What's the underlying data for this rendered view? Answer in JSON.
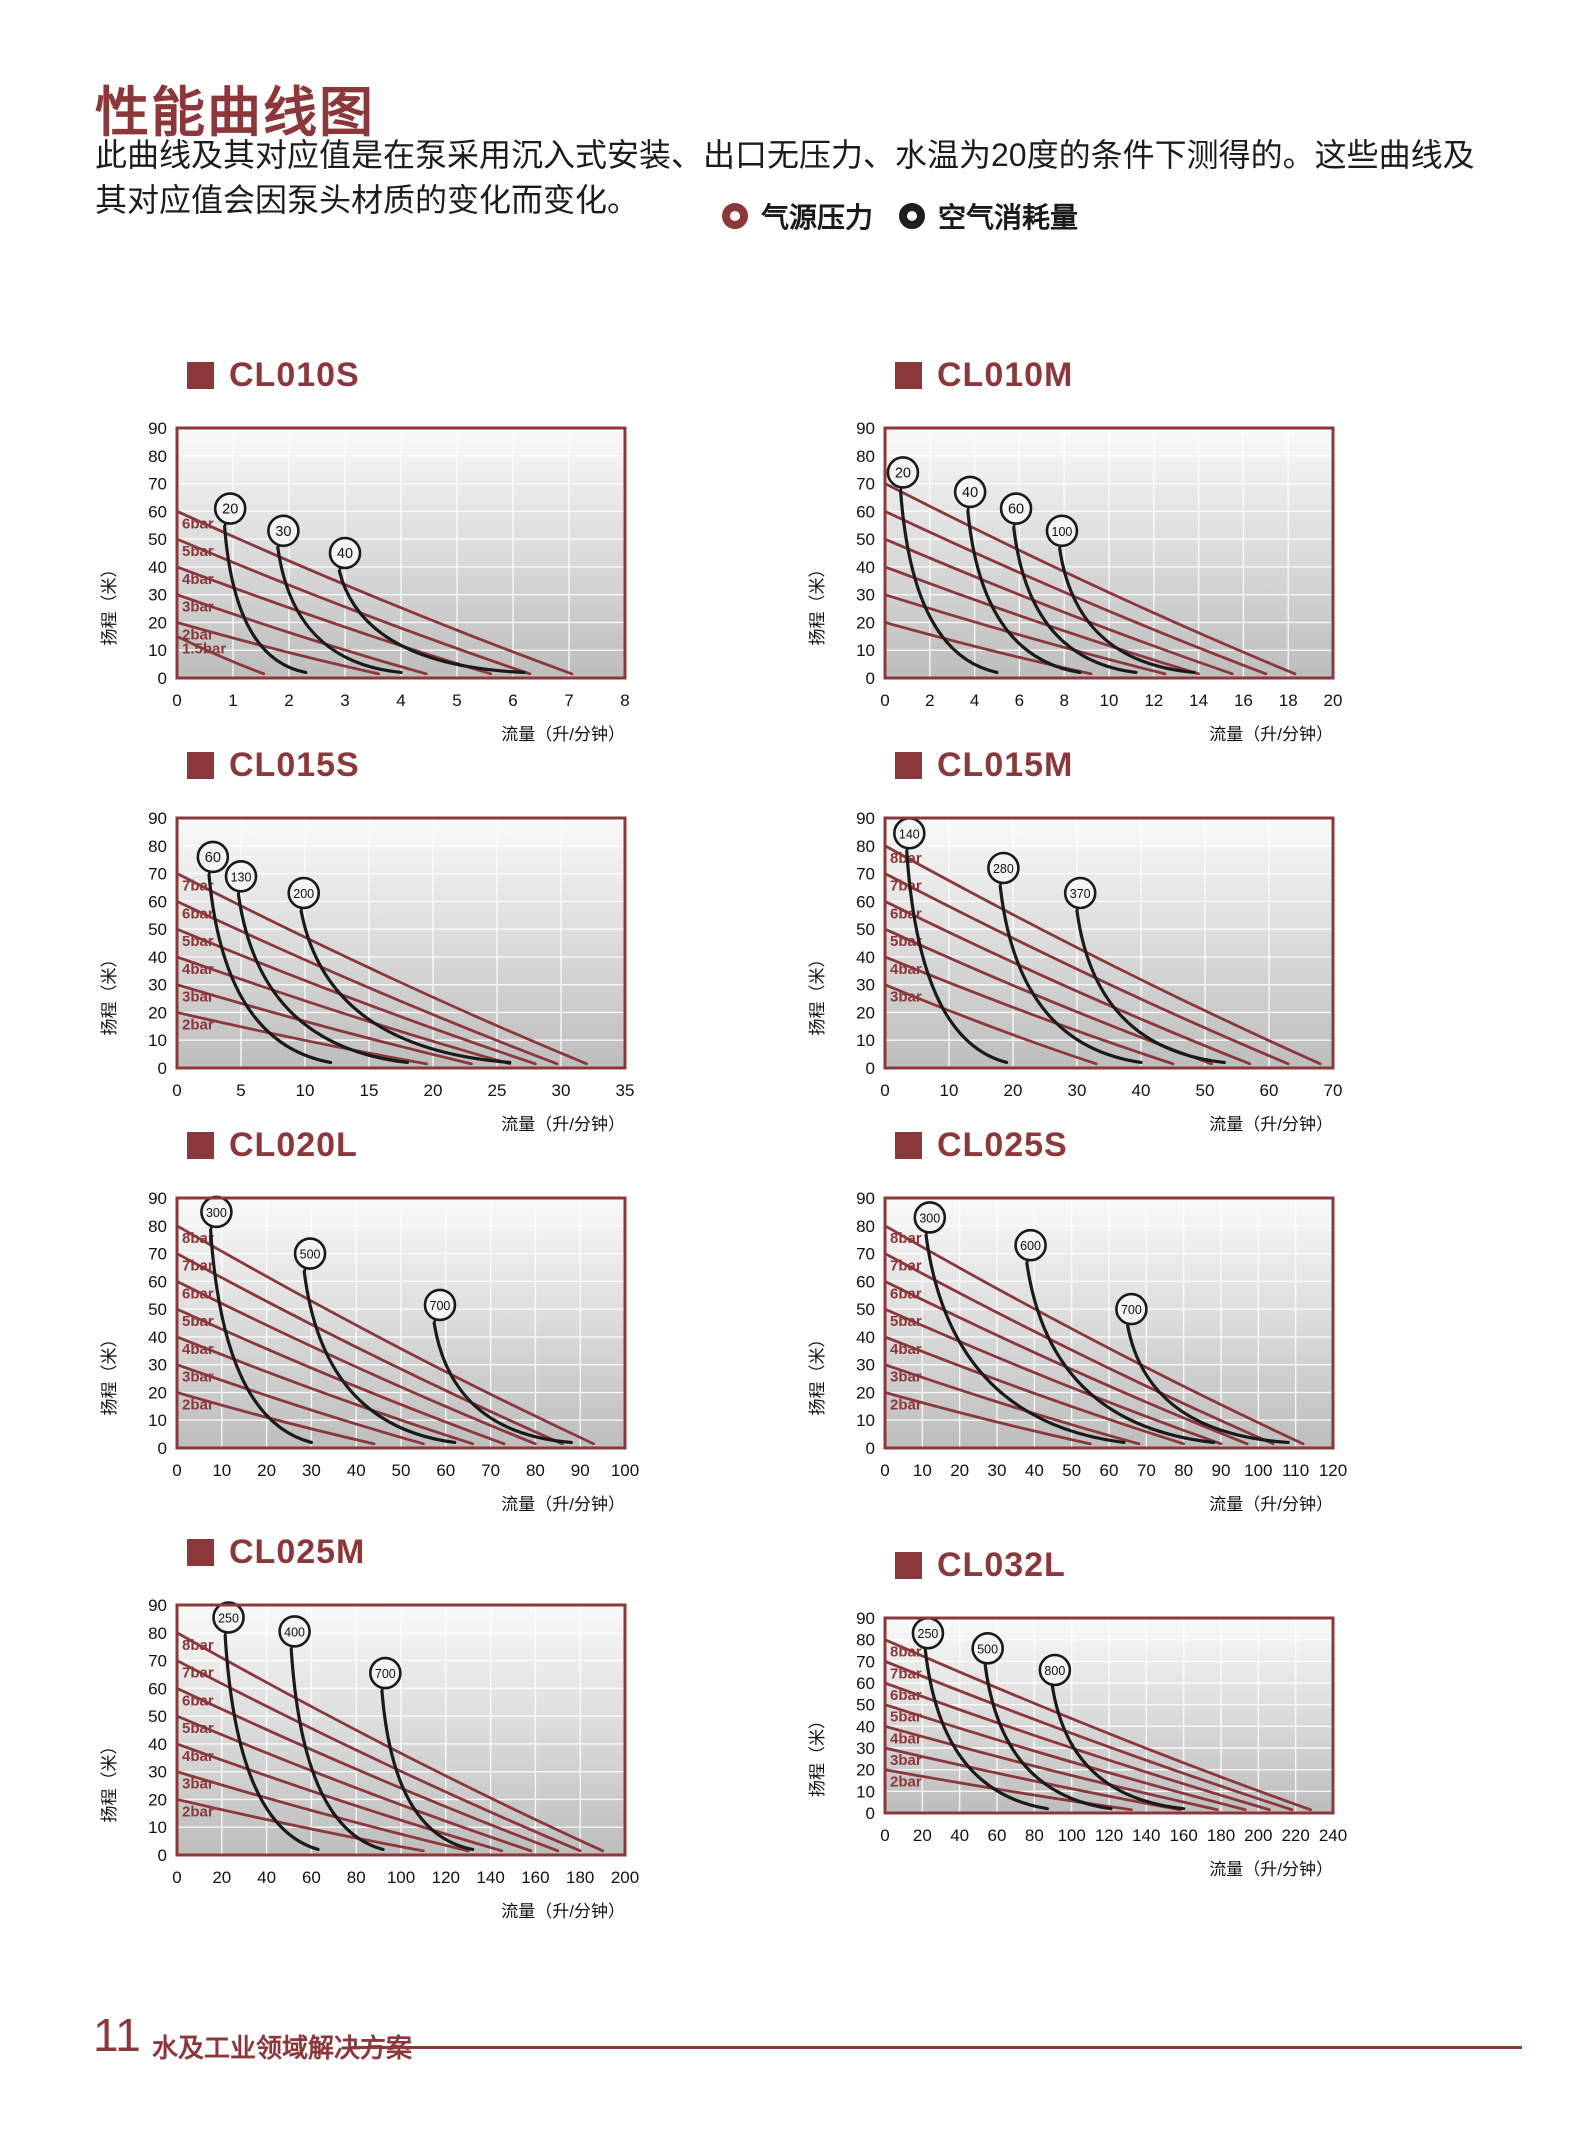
{
  "page": {
    "title": "性能曲线图",
    "description": "此曲线及其对应值是在泵采用沉入式安装、出口无压力、水温为20度的条件下测得的。这些曲线及其对应值会因泵头材质的变化而变化。",
    "footer": {
      "page_number": "11",
      "text": "水及工业领域解决方案"
    }
  },
  "legend": [
    {
      "label": "气源压力",
      "color": "#8c383a"
    },
    {
      "label": "空气消耗量",
      "color": "#1d1d1d"
    }
  ],
  "colors": {
    "accent": "#8c383a",
    "curve_black": "#1a1a1a",
    "grid": "#ffffff",
    "plot_bg_top": "#f9f9f9",
    "plot_bg_bottom": "#bdbdbd",
    "tick_text": "#111111"
  },
  "chart_data": [
    {
      "name": "CL010S",
      "type": "line",
      "xlabel": "流量（升/分钟）",
      "ylabel": "扬程（米）",
      "xlim": [
        0,
        8
      ],
      "x_step": 1,
      "ylim": [
        0,
        90
      ],
      "y_step": 10,
      "pressure_curves": [
        {
          "label": "6bar",
          "start_head_m": 60,
          "max_flow": 7.05
        },
        {
          "label": "5bar",
          "start_head_m": 50,
          "max_flow": 6.3
        },
        {
          "label": "4bar",
          "start_head_m": 40,
          "max_flow": 5.6
        },
        {
          "label": "3bar",
          "start_head_m": 30,
          "max_flow": 4.45
        },
        {
          "label": "2bar",
          "start_head_m": 20,
          "max_flow": 3.6
        },
        {
          "label": "1.5bar",
          "start_head_m": 15,
          "max_flow": 1.55
        }
      ],
      "air_curves": [
        {
          "label": "20",
          "circle_at": [
            0.95,
            61
          ],
          "from": [
            0.85,
            54.5
          ],
          "end_flow": 2.3
        },
        {
          "label": "30",
          "circle_at": [
            1.9,
            53
          ],
          "from": [
            1.8,
            47
          ],
          "end_flow": 4.0
        },
        {
          "label": "40",
          "circle_at": [
            3.0,
            45
          ],
          "from": [
            2.9,
            38.5
          ],
          "end_flow": 6.2
        }
      ]
    },
    {
      "name": "CL010M",
      "type": "line",
      "xlabel": "流量（升/分钟）",
      "ylabel": "扬程（米）",
      "xlim": [
        0,
        20
      ],
      "x_step": 2,
      "ylim": [
        0,
        90
      ],
      "y_step": 10,
      "pressure_curves": [
        {
          "label": "",
          "start_head_m": 70,
          "max_flow": 18.3
        },
        {
          "label": "",
          "start_head_m": 60,
          "max_flow": 17.0
        },
        {
          "label": "",
          "start_head_m": 50,
          "max_flow": 15.5
        },
        {
          "label": "",
          "start_head_m": 40,
          "max_flow": 14.0
        },
        {
          "label": "",
          "start_head_m": 30,
          "max_flow": 12.5
        },
        {
          "label": "",
          "start_head_m": 20,
          "max_flow": 9.2
        }
      ],
      "air_curves": [
        {
          "label": "20",
          "circle_at": [
            0.8,
            74
          ],
          "from": [
            0.7,
            67
          ],
          "end_flow": 5.0
        },
        {
          "label": "40",
          "circle_at": [
            3.8,
            67
          ],
          "from": [
            3.7,
            60
          ],
          "end_flow": 8.7
        },
        {
          "label": "60",
          "circle_at": [
            5.85,
            61
          ],
          "from": [
            5.75,
            54
          ],
          "end_flow": 11.2
        },
        {
          "label": "100",
          "circle_at": [
            7.9,
            53
          ],
          "from": [
            7.8,
            46.5
          ],
          "end_flow": 13.8
        }
      ]
    },
    {
      "name": "CL015S",
      "type": "line",
      "xlabel": "流量（升/分钟）",
      "ylabel": "扬程（米）",
      "xlim": [
        0,
        35
      ],
      "x_step": 5,
      "ylim": [
        0,
        90
      ],
      "y_step": 10,
      "pressure_curves": [
        {
          "label": "7bar",
          "start_head_m": 70,
          "max_flow": 32.0
        },
        {
          "label": "6bar",
          "start_head_m": 60,
          "max_flow": 29.7
        },
        {
          "label": "5bar",
          "start_head_m": 50,
          "max_flow": 28.0
        },
        {
          "label": "4bar",
          "start_head_m": 40,
          "max_flow": 26.0
        },
        {
          "label": "3bar",
          "start_head_m": 30,
          "max_flow": 23.0
        },
        {
          "label": "2bar",
          "start_head_m": 20,
          "max_flow": 19.5
        }
      ],
      "air_curves": [
        {
          "label": "60",
          "circle_at": [
            2.8,
            76
          ],
          "from": [
            2.5,
            69.5
          ],
          "end_flow": 12.0
        },
        {
          "label": "130",
          "circle_at": [
            5.0,
            69
          ],
          "from": [
            4.8,
            62.5
          ],
          "end_flow": 18.0
        },
        {
          "label": "200",
          "circle_at": [
            9.9,
            63
          ],
          "from": [
            9.7,
            56.5
          ],
          "end_flow": 26.0
        }
      ]
    },
    {
      "name": "CL015M",
      "type": "line",
      "xlabel": "流量（升/分钟）",
      "ylabel": "扬程（米）",
      "xlim": [
        0,
        70
      ],
      "x_step": 10,
      "ylim": [
        0,
        90
      ],
      "y_step": 10,
      "pressure_curves": [
        {
          "label": "8bar",
          "start_head_m": 80,
          "max_flow": 68.0
        },
        {
          "label": "7bar",
          "start_head_m": 70,
          "max_flow": 63.0
        },
        {
          "label": "6bar",
          "start_head_m": 60,
          "max_flow": 57.0
        },
        {
          "label": "5bar",
          "start_head_m": 50,
          "max_flow": 51.0
        },
        {
          "label": "4bar",
          "start_head_m": 40,
          "max_flow": 45.0
        },
        {
          "label": "3bar",
          "start_head_m": 30,
          "max_flow": 33.0
        }
      ],
      "air_curves": [
        {
          "label": "140",
          "circle_at": [
            3.8,
            84.5
          ],
          "from": [
            3.4,
            78
          ],
          "end_flow": 19.0
        },
        {
          "label": "280",
          "circle_at": [
            18.5,
            72
          ],
          "from": [
            18,
            65.5
          ],
          "end_flow": 40.0
        },
        {
          "label": "370",
          "circle_at": [
            30.5,
            63
          ],
          "from": [
            30,
            56.5
          ],
          "end_flow": 53.0
        }
      ]
    },
    {
      "name": "CL020L",
      "type": "line",
      "xlabel": "流量（升/分钟）",
      "ylabel": "扬程（米）",
      "xlim": [
        0,
        100
      ],
      "x_step": 10,
      "ylim": [
        0,
        90
      ],
      "y_step": 10,
      "pressure_curves": [
        {
          "label": "8bar",
          "start_head_m": 80,
          "max_flow": 93.0
        },
        {
          "label": "7bar",
          "start_head_m": 70,
          "max_flow": 86.0
        },
        {
          "label": "6bar",
          "start_head_m": 60,
          "max_flow": 80.0
        },
        {
          "label": "5bar",
          "start_head_m": 50,
          "max_flow": 73.0
        },
        {
          "label": "4bar",
          "start_head_m": 40,
          "max_flow": 66.0
        },
        {
          "label": "3bar",
          "start_head_m": 30,
          "max_flow": 55.0
        },
        {
          "label": "2bar",
          "start_head_m": 20,
          "max_flow": 44.0
        }
      ],
      "air_curves": [
        {
          "label": "300",
          "circle_at": [
            8.8,
            85
          ],
          "from": [
            7.5,
            78.5
          ],
          "end_flow": 30.0
        },
        {
          "label": "500",
          "circle_at": [
            29.7,
            70
          ],
          "from": [
            28.4,
            63.5
          ],
          "end_flow": 62.0
        },
        {
          "label": "700",
          "circle_at": [
            58.7,
            51.5
          ],
          "from": [
            57.4,
            45
          ],
          "end_flow": 88.0
        }
      ]
    },
    {
      "name": "CL025S",
      "type": "line",
      "xlabel": "流量（升/分钟）",
      "ylabel": "扬程（米）",
      "xlim": [
        0,
        120
      ],
      "x_step": 10,
      "ylim": [
        0,
        90
      ],
      "y_step": 10,
      "pressure_curves": [
        {
          "label": "8bar",
          "start_head_m": 80,
          "max_flow": 112.0
        },
        {
          "label": "7bar",
          "start_head_m": 70,
          "max_flow": 104.0
        },
        {
          "label": "6bar",
          "start_head_m": 60,
          "max_flow": 97.0
        },
        {
          "label": "5bar",
          "start_head_m": 50,
          "max_flow": 90.0
        },
        {
          "label": "4bar",
          "start_head_m": 40,
          "max_flow": 80.0
        },
        {
          "label": "3bar",
          "start_head_m": 30,
          "max_flow": 68.0
        },
        {
          "label": "2bar",
          "start_head_m": 20,
          "max_flow": 55.0
        }
      ],
      "air_curves": [
        {
          "label": "300",
          "circle_at": [
            12,
            83
          ],
          "from": [
            11,
            76.5
          ],
          "end_flow": 64.0
        },
        {
          "label": "600",
          "circle_at": [
            39,
            73
          ],
          "from": [
            38,
            66.5
          ],
          "end_flow": 88.0
        },
        {
          "label": "700",
          "circle_at": [
            66,
            50
          ],
          "from": [
            65,
            44
          ],
          "end_flow": 108.0
        }
      ]
    },
    {
      "name": "CL025M",
      "type": "line",
      "xlabel": "流量（升/分钟）",
      "ylabel": "扬程（米）",
      "xlim": [
        0,
        200
      ],
      "x_step": 20,
      "ylim": [
        0,
        90
      ],
      "y_step": 10,
      "pressure_curves": [
        {
          "label": "8bar",
          "start_head_m": 80,
          "max_flow": 190.0
        },
        {
          "label": "7bar",
          "start_head_m": 70,
          "max_flow": 180.0
        },
        {
          "label": "6bar",
          "start_head_m": 60,
          "max_flow": 170.0
        },
        {
          "label": "5bar",
          "start_head_m": 50,
          "max_flow": 158.0
        },
        {
          "label": "4bar",
          "start_head_m": 40,
          "max_flow": 145.0
        },
        {
          "label": "3bar",
          "start_head_m": 30,
          "max_flow": 130.0
        },
        {
          "label": "2bar",
          "start_head_m": 20,
          "max_flow": 110.0
        }
      ],
      "air_curves": [
        {
          "label": "250",
          "circle_at": [
            23,
            85.5
          ],
          "from": [
            21.5,
            79
          ],
          "end_flow": 63.0
        },
        {
          "label": "400",
          "circle_at": [
            52.5,
            80.5
          ],
          "from": [
            51,
            74
          ],
          "end_flow": 92.0
        },
        {
          "label": "700",
          "circle_at": [
            93,
            65.5
          ],
          "from": [
            91.5,
            59
          ],
          "end_flow": 132.0
        }
      ]
    },
    {
      "name": "CL032L",
      "type": "line",
      "xlabel": "流量（升/分钟）",
      "ylabel": "扬程（米）",
      "xlim": [
        0,
        240
      ],
      "x_step": 20,
      "ylim": [
        0,
        90
      ],
      "y_step": 10,
      "pressure_curves": [
        {
          "label": "8bar",
          "start_head_m": 80,
          "max_flow": 228.0
        },
        {
          "label": "7bar",
          "start_head_m": 70,
          "max_flow": 218.0
        },
        {
          "label": "6bar",
          "start_head_m": 60,
          "max_flow": 206.0
        },
        {
          "label": "5bar",
          "start_head_m": 50,
          "max_flow": 193.0
        },
        {
          "label": "4bar",
          "start_head_m": 40,
          "max_flow": 178.0
        },
        {
          "label": "3bar",
          "start_head_m": 30,
          "max_flow": 158.0
        },
        {
          "label": "2bar",
          "start_head_m": 20,
          "max_flow": 132.0
        }
      ],
      "air_curves": [
        {
          "label": "250",
          "circle_at": [
            23,
            83
          ],
          "from": [
            21.5,
            76
          ],
          "end_flow": 87.0
        },
        {
          "label": "500",
          "circle_at": [
            55,
            76
          ],
          "from": [
            53.5,
            69.5
          ],
          "end_flow": 121.0
        },
        {
          "label": "800",
          "circle_at": [
            91,
            66
          ],
          "from": [
            89.5,
            59.5
          ],
          "end_flow": 160.0
        }
      ]
    }
  ]
}
